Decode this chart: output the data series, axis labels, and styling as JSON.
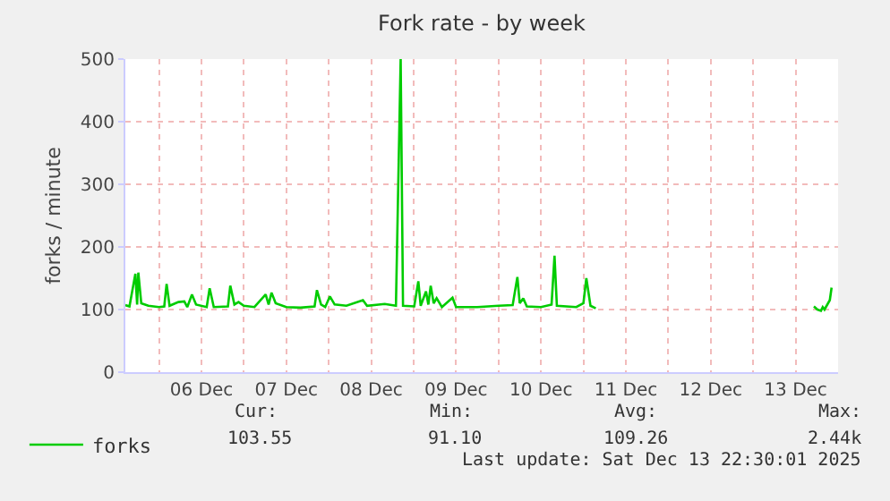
{
  "chart_data": {
    "type": "line",
    "title": "Fork rate - by week",
    "ylabel": "forks / minute",
    "x": [
      "2025-12-05T14:30",
      "2025-12-05T15:40",
      "2025-12-05T17:20",
      "2025-12-05T17:50",
      "2025-12-05T18:10",
      "2025-12-05T19:00",
      "2025-12-05T21:00",
      "2025-12-06T00:00",
      "2025-12-06T01:30",
      "2025-12-06T02:10",
      "2025-12-06T03:00",
      "2025-12-06T05:30",
      "2025-12-06T07:10",
      "2025-12-06T08:00",
      "2025-12-06T09:20",
      "2025-12-06T10:30",
      "2025-12-06T13:30",
      "2025-12-06T14:20",
      "2025-12-06T15:30",
      "2025-12-06T19:30",
      "2025-12-06T20:10",
      "2025-12-06T21:20",
      "2025-12-06T22:30",
      "2025-12-07T00:00",
      "2025-12-07T03:00",
      "2025-12-07T06:10",
      "2025-12-07T07:00",
      "2025-12-07T07:50",
      "2025-12-07T09:00",
      "2025-12-07T12:00",
      "2025-12-07T16:00",
      "2025-12-07T20:00",
      "2025-12-07T20:40",
      "2025-12-07T21:50",
      "2025-12-07T23:00",
      "2025-12-08T00:20",
      "2025-12-08T01:40",
      "2025-12-08T05:00",
      "2025-12-08T09:40",
      "2025-12-08T10:50",
      "2025-12-08T15:50",
      "2025-12-08T19:00",
      "2025-12-08T20:20",
      "2025-12-08T21:00",
      "2025-12-09T00:10",
      "2025-12-09T01:20",
      "2025-12-09T02:00",
      "2025-12-09T03:30",
      "2025-12-09T04:10",
      "2025-12-09T04:50",
      "2025-12-09T05:40",
      "2025-12-09T06:30",
      "2025-12-09T08:00",
      "2025-12-09T11:00",
      "2025-12-09T12:00",
      "2025-12-09T18:00",
      "2025-12-10T00:00",
      "2025-12-10T04:00",
      "2025-12-10T05:20",
      "2025-12-10T06:00",
      "2025-12-10T07:00",
      "2025-12-10T08:00",
      "2025-12-10T12:00",
      "2025-12-10T15:00",
      "2025-12-10T15:50",
      "2025-12-10T16:30",
      "2025-12-10T22:00",
      "2025-12-11T00:00",
      "2025-12-11T00:50",
      "2025-12-11T02:00",
      "2025-12-11T03:30",
      "2025-12-12T12:00",
      "2025-12-13T17:10",
      "2025-12-13T18:10",
      "2025-12-13T19:10",
      "2025-12-13T19:40",
      "2025-12-13T20:10",
      "2025-12-13T21:10",
      "2025-12-13T21:40",
      "2025-12-13T22:10"
    ],
    "series": [
      {
        "name": "forks",
        "color": "#00cc00",
        "values": [
          107,
          105,
          157,
          108,
          159,
          110,
          106,
          104,
          105,
          141,
          106,
          112,
          113,
          104,
          124,
          108,
          104,
          134,
          104,
          105,
          138,
          108,
          112,
          106,
          104,
          124,
          108,
          127,
          110,
          104,
          103,
          105,
          131,
          108,
          104,
          121,
          108,
          106,
          115,
          106,
          109,
          106,
          500,
          106,
          105,
          145,
          106,
          129,
          108,
          138,
          110,
          118,
          104,
          119,
          104,
          104,
          106,
          107,
          152,
          110,
          118,
          105,
          104,
          108,
          186,
          106,
          104,
          110,
          150,
          106,
          102,
          null,
          105,
          100,
          98,
          104,
          100,
          110,
          115,
          135
        ]
      }
    ],
    "xlim": [
      "2025-12-05T14:30",
      "2025-12-14T00:00"
    ],
    "xticks": [
      {
        "value": "2025-12-06T00:00",
        "label": null
      },
      {
        "value": "2025-12-06T12:00",
        "label": "06 Dec"
      },
      {
        "value": "2025-12-07T00:00",
        "label": null
      },
      {
        "value": "2025-12-07T12:00",
        "label": "07 Dec"
      },
      {
        "value": "2025-12-08T00:00",
        "label": null
      },
      {
        "value": "2025-12-08T12:00",
        "label": "08 Dec"
      },
      {
        "value": "2025-12-09T00:00",
        "label": null
      },
      {
        "value": "2025-12-09T12:00",
        "label": "09 Dec"
      },
      {
        "value": "2025-12-10T00:00",
        "label": null
      },
      {
        "value": "2025-12-10T12:00",
        "label": "10 Dec"
      },
      {
        "value": "2025-12-11T00:00",
        "label": null
      },
      {
        "value": "2025-12-11T12:00",
        "label": "11 Dec"
      },
      {
        "value": "2025-12-12T00:00",
        "label": null
      },
      {
        "value": "2025-12-12T12:00",
        "label": "12 Dec"
      },
      {
        "value": "2025-12-13T00:00",
        "label": null
      },
      {
        "value": "2025-12-13T12:00",
        "label": "13 Dec"
      }
    ],
    "ylim": [
      0,
      500
    ],
    "yticks": [
      0,
      100,
      200,
      300,
      400,
      500
    ],
    "grid": true,
    "legend": "bottom left",
    "marker": "none",
    "line_style": "solid",
    "annotations": [
      "Cur:",
      "Min:",
      "Avg:",
      "Max:",
      "103.55",
      "91.10",
      "109.26",
      "2.44k",
      "Last update: Sat Dec 13 22:30:01 2025"
    ]
  }
}
